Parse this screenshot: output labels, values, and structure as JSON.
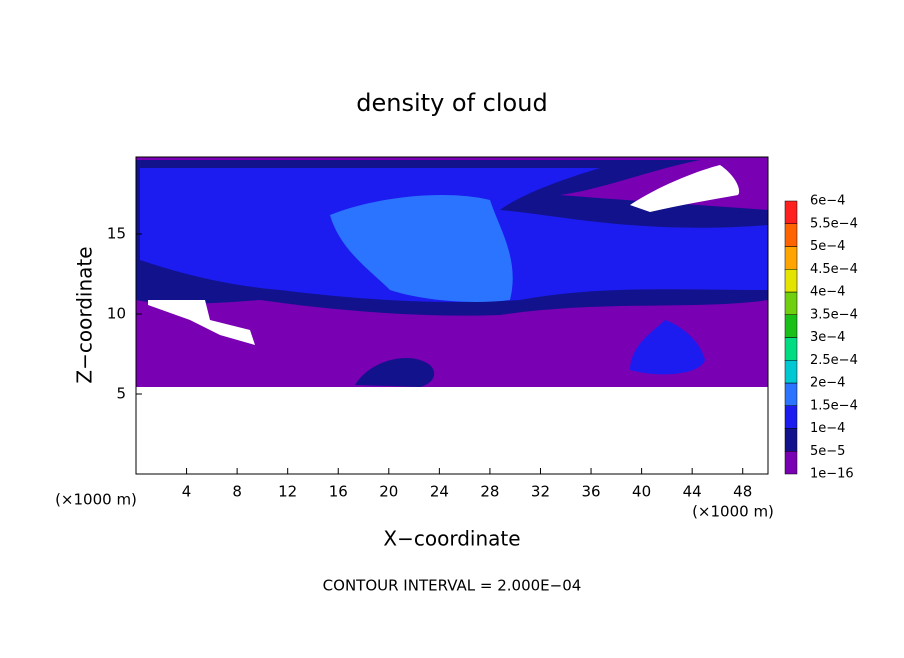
{
  "chart_data": {
    "type": "contour",
    "title": "density of cloud",
    "x_label": "X−coordinate",
    "y_label": "Z−coordinate",
    "x_unit": "(×1000 m)",
    "y_unit": "(×1000 m)",
    "footer": "CONTOUR INTERVAL = 2.000E−04",
    "xlim": [
      0,
      50
    ],
    "ylim": [
      0,
      20
    ],
    "xticks": [
      4,
      8,
      12,
      16,
      20,
      24,
      28,
      32,
      36,
      40,
      44,
      48
    ],
    "yticks": [
      5,
      10,
      15
    ],
    "colorbar": {
      "levels": [
        {
          "value": 1e-16,
          "label": "1e−16"
        },
        {
          "value": 5e-05,
          "label": "5e−5"
        },
        {
          "value": 0.0001,
          "label": "1e−4"
        },
        {
          "value": 0.00015,
          "label": "1.5e−4"
        },
        {
          "value": 0.0002,
          "label": "2e−4"
        },
        {
          "value": 0.00025,
          "label": "2.5e−4"
        },
        {
          "value": 0.0003,
          "label": "3e−4"
        },
        {
          "value": 0.00035,
          "label": "3.5e−4"
        },
        {
          "value": 0.0004,
          "label": "4e−4"
        },
        {
          "value": 0.00045,
          "label": "4.5e−4"
        },
        {
          "value": 0.0005,
          "label": "5e−4"
        },
        {
          "value": 0.00055,
          "label": "5.5e−4"
        },
        {
          "value": 0.0006,
          "label": "6e−4"
        }
      ],
      "colors": [
        "#7a00b4",
        "#12128c",
        "#1c1cf0",
        "#2a74ff",
        "#00c8d2",
        "#00dc82",
        "#18c018",
        "#70d010",
        "#e4e400",
        "#ffa400",
        "#ff6400",
        "#ff2020",
        "#ff8c8c"
      ]
    }
  }
}
